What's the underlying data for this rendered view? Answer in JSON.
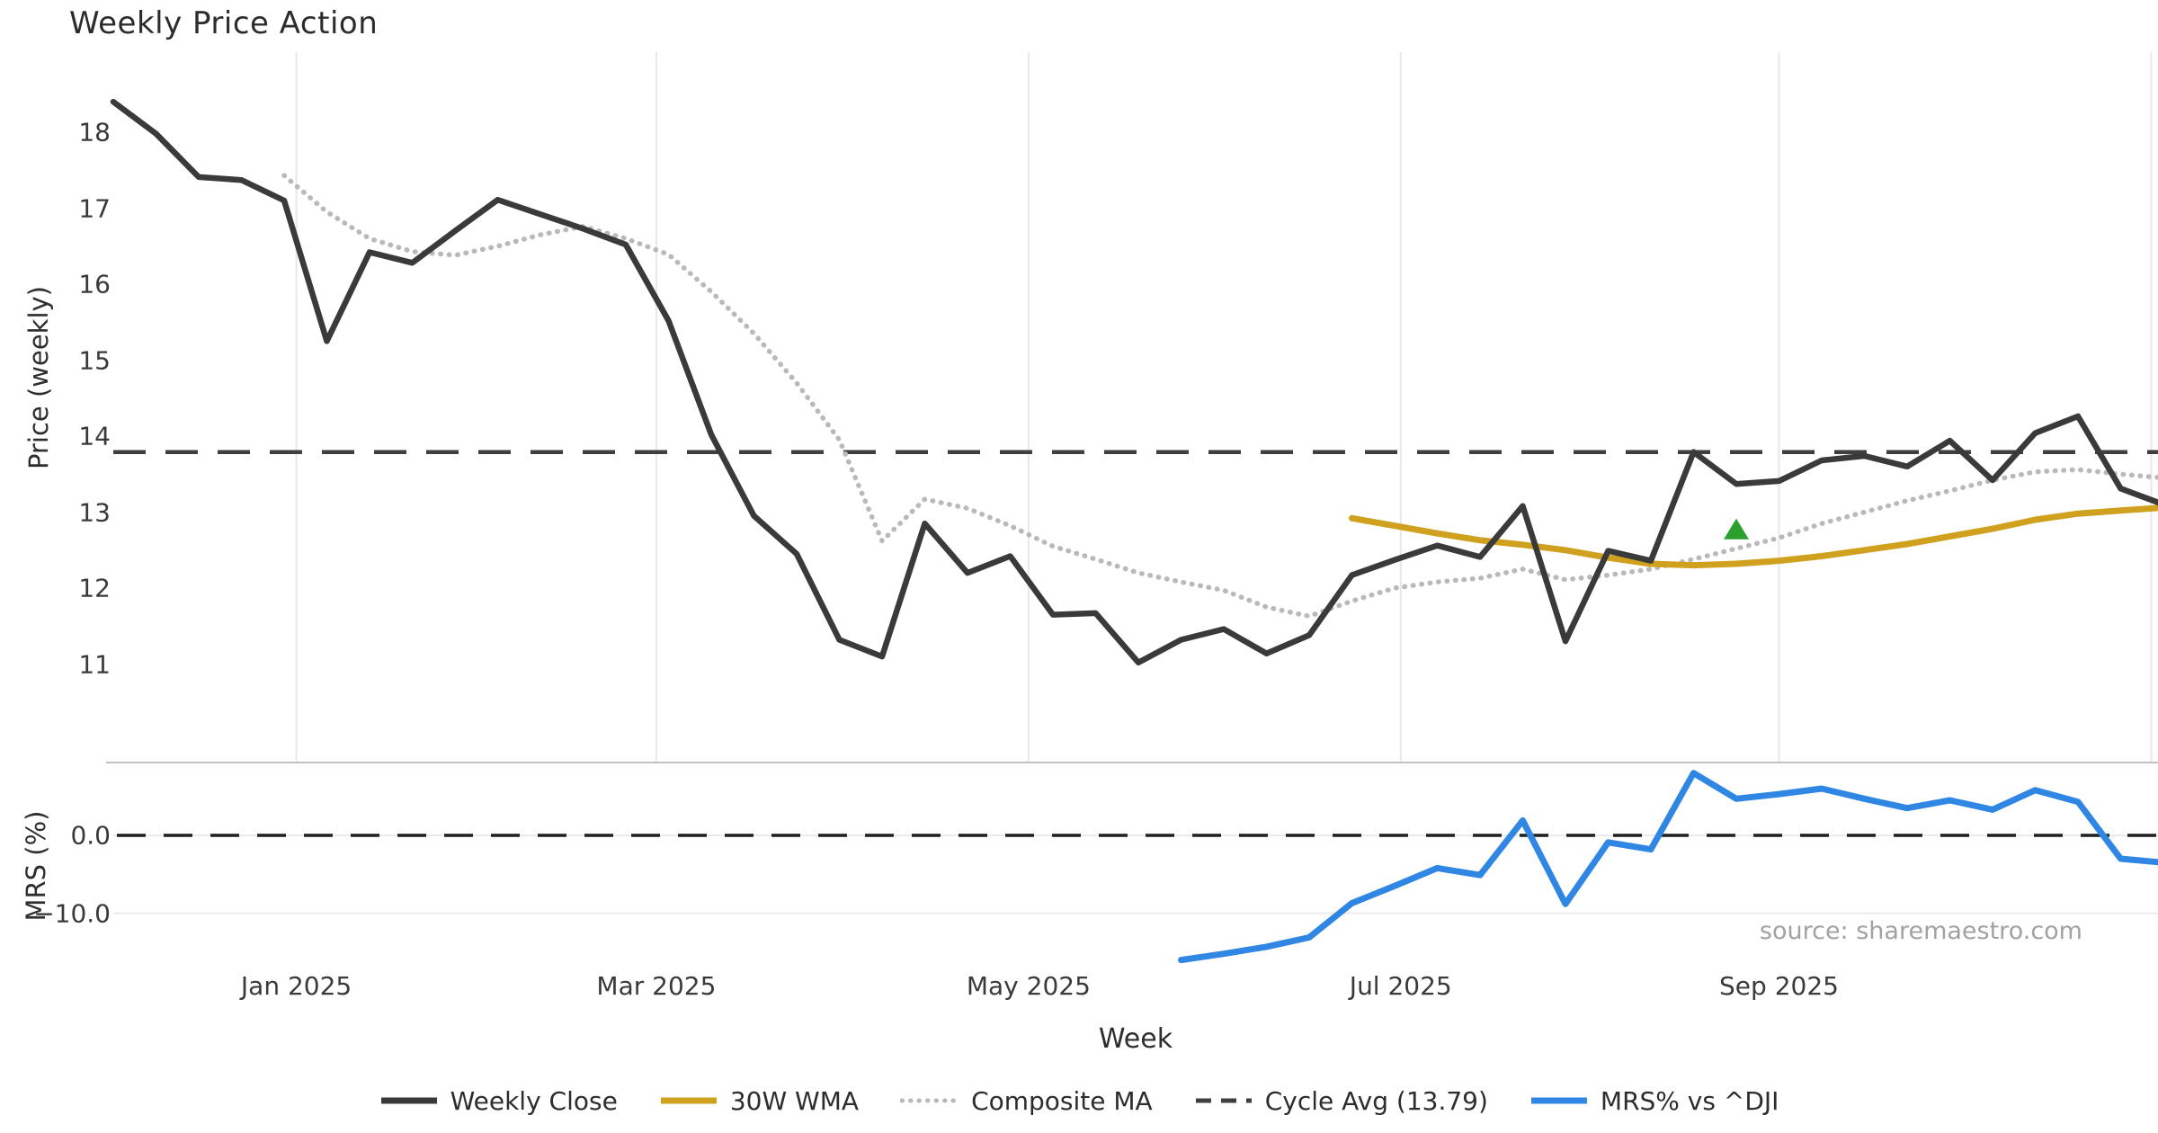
{
  "title": "Weekly Price Action",
  "source_note": "source: sharemaestro.com",
  "axes": {
    "price": {
      "label": "Price (weekly)"
    },
    "mrs": {
      "label": "MRS (%)"
    },
    "x": {
      "label": "Week"
    }
  },
  "legend": {
    "position": "bottom-center",
    "items": [
      {
        "label": "Weekly Close",
        "style": "solid",
        "color": "#3a3a3a"
      },
      {
        "label": "30W WMA",
        "style": "solid",
        "color": "#d0a11f"
      },
      {
        "label": "Composite MA",
        "style": "dotted",
        "color": "#b9b9b9"
      },
      {
        "label": "Cycle Avg (13.79)",
        "style": "dashed",
        "color": "#3f3f3f"
      },
      {
        "label": "MRS% vs ^DJI",
        "style": "solid",
        "color": "#2f86e3"
      }
    ]
  },
  "chart_data": [
    {
      "type": "line",
      "panel": "price",
      "title": "Weekly Price Action",
      "xlabel": "Week",
      "ylabel": "Price (weekly)",
      "ylim": [
        10.6,
        19.05
      ],
      "yticks": [
        18,
        17,
        16,
        15,
        14,
        13,
        12,
        11
      ],
      "x_unit": "week_index",
      "xlim_weeks": [
        0,
        48
      ],
      "grid": "vertical-month-lines-only",
      "xticks": [
        {
          "label": "Jan 2025",
          "week": 4.286
        },
        {
          "label": "Mar 2025",
          "week": 12.714
        },
        {
          "label": "May 2025",
          "week": 21.429
        },
        {
          "label": "Jul 2025",
          "week": 30.143
        },
        {
          "label": "Sep 2025",
          "week": 39.0
        }
      ],
      "unlabeled_gridline_weeks": [
        47.714
      ],
      "series": [
        {
          "name": "Weekly Close",
          "style": "solid",
          "color": "#3a3a3a",
          "start_week": 0,
          "values": [
            18.4,
            17.98,
            17.41,
            17.37,
            17.1,
            15.25,
            16.42,
            16.28,
            16.7,
            17.11,
            16.92,
            16.73,
            16.52,
            15.52,
            14.02,
            12.95,
            12.45,
            11.32,
            11.1,
            12.85,
            12.2,
            12.42,
            11.65,
            11.67,
            11.02,
            11.32,
            11.46,
            11.14,
            11.38,
            12.17,
            12.37,
            12.56,
            12.41,
            13.08,
            11.3,
            12.49,
            12.36,
            13.79,
            13.37,
            13.41,
            13.68,
            13.74,
            13.6,
            13.94,
            13.42,
            14.04,
            14.26,
            13.31,
            13.1
          ]
        },
        {
          "name": "Composite MA",
          "style": "dotted",
          "color": "#b9b9b9",
          "start_week": 4,
          "values": [
            17.43,
            16.95,
            16.6,
            16.43,
            16.38,
            16.5,
            16.65,
            16.76,
            16.6,
            16.39,
            15.9,
            15.35,
            14.7,
            13.95,
            12.62,
            13.17,
            13.05,
            12.82,
            12.55,
            12.38,
            12.2,
            12.08,
            11.97,
            11.75,
            11.63,
            11.83,
            12.0,
            12.08,
            12.13,
            12.25,
            12.11,
            12.17,
            12.25,
            12.38,
            12.52,
            12.66,
            12.85,
            13.0,
            13.15,
            13.28,
            13.42,
            13.53,
            13.56,
            13.5,
            13.45
          ]
        },
        {
          "name": "30W WMA",
          "style": "solid",
          "color": "#d0a11f",
          "start_week": 29,
          "values": [
            12.92,
            12.82,
            12.72,
            12.63,
            12.57,
            12.5,
            12.4,
            12.32,
            12.3,
            12.32,
            12.36,
            12.42,
            12.5,
            12.58,
            12.68,
            12.78,
            12.9,
            12.98,
            13.02,
            13.06
          ]
        },
        {
          "name": "Cycle Avg (13.79)",
          "style": "dashed",
          "color": "#3f3f3f",
          "constant_value": 13.79
        }
      ],
      "marker": {
        "shape": "triangle-up",
        "color": "#2ca02c",
        "week": 38,
        "value": 12.76,
        "name": "signal-triangle"
      }
    },
    {
      "type": "line",
      "panel": "mrs",
      "ylabel": "MRS (%)",
      "ylim": [
        -16.8,
        9.4
      ],
      "yticks": [
        {
          "label": "0.0",
          "value": 0.0
        },
        {
          "label": "−10.0",
          "value": -10.0
        }
      ],
      "zero_line": {
        "style": "dashed",
        "color": "#1f1f1f",
        "value": 0.0
      },
      "series": [
        {
          "name": "MRS% vs ^DJI",
          "style": "solid",
          "color": "#2f86e3",
          "start_week": 25,
          "values": [
            -16.0,
            -15.2,
            -14.3,
            -13.1,
            -8.7,
            -6.5,
            -4.2,
            -5.1,
            1.9,
            -8.8,
            -0.9,
            -1.8,
            8.0,
            4.7,
            5.3,
            6.0,
            4.7,
            3.5,
            4.5,
            3.3,
            5.8,
            4.3,
            -3.0,
            -3.5
          ]
        }
      ]
    }
  ]
}
